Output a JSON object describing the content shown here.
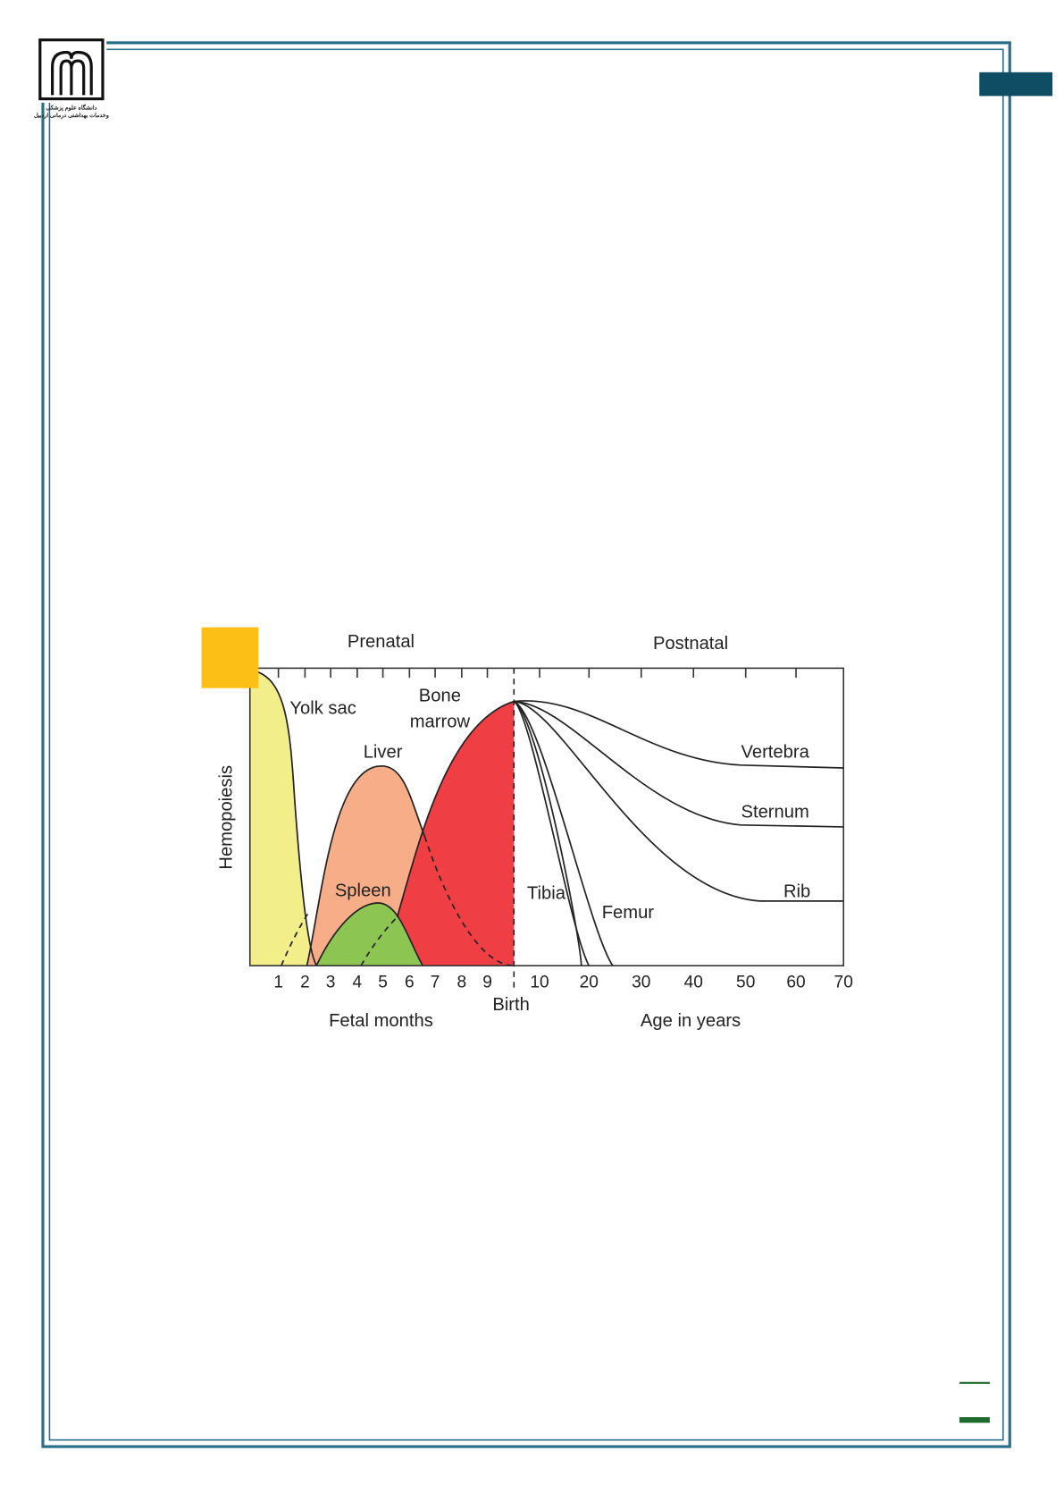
{
  "logo": {
    "lines": [
      "دانشگاه علوم پزشکی",
      "وخدمات بهداشتی درمانی اردبیل"
    ]
  },
  "figure": {
    "top_labels": [
      "Prenatal",
      "Postnatal"
    ],
    "y_label": "Hemopoiesis",
    "x_labels_fetal": [
      "1",
      "2",
      "3",
      "4",
      "5",
      "6",
      "7",
      "8",
      "9"
    ],
    "x_labels_age": [
      "10",
      "20",
      "30",
      "40",
      "50",
      "60",
      "70"
    ],
    "birth": "Birth",
    "x_title_fetal": "Fetal months",
    "x_title_age": "Age in years",
    "curve_labels": {
      "yolk_sac": "Yolk sac",
      "bone": "Bone",
      "marrow": "marrow",
      "liver": "Liver",
      "spleen": "Spleen",
      "vertebra": "Vertebra",
      "sternum": "Sternum",
      "rib": "Rib",
      "tibia": "Tibia",
      "femur": "Femur"
    }
  }
}
